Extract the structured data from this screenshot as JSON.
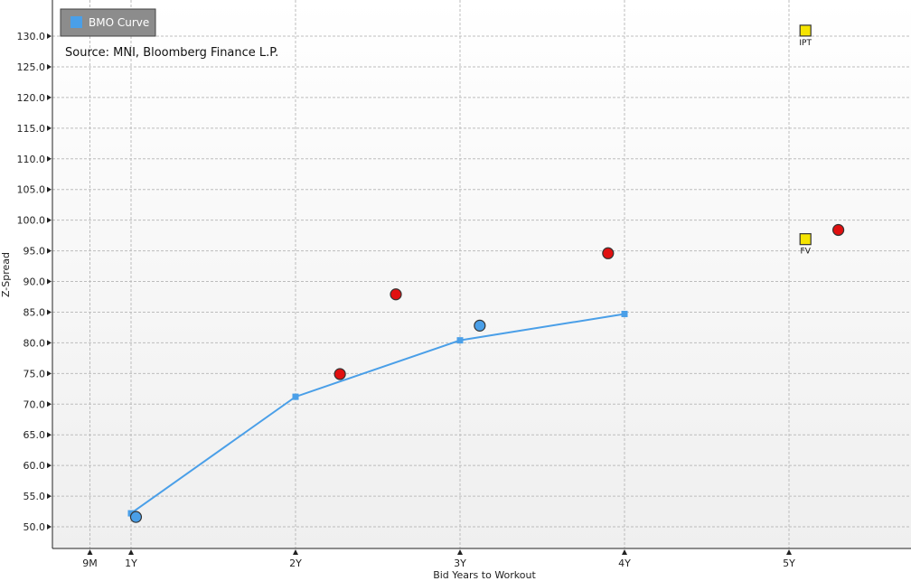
{
  "chart_data": {
    "type": "scatter",
    "source": "Source: MNI, Bloomberg Finance L.P.",
    "xlabel": "Bid Years to Workout",
    "ylabel": "Z-Spread",
    "xlim": [
      0.5,
      5.75
    ],
    "ylim": [
      48.0,
      135.0
    ],
    "x_ticks": [
      {
        "value": 0.75,
        "label": "9M"
      },
      {
        "value": 1.0,
        "label": "1Y"
      },
      {
        "value": 2.0,
        "label": "2Y"
      },
      {
        "value": 3.0,
        "label": "3Y"
      },
      {
        "value": 4.0,
        "label": "4Y"
      },
      {
        "value": 5.0,
        "label": "5Y"
      }
    ],
    "y_ticks": [
      50.0,
      55.0,
      60.0,
      65.0,
      70.0,
      75.0,
      80.0,
      85.0,
      90.0,
      95.0,
      100.0,
      105.0,
      110.0,
      115.0,
      120.0,
      125.0,
      130.0
    ],
    "y_tick_labels": [
      "50.0",
      "55.0",
      "60.0",
      "65.0",
      "70.0",
      "75.0",
      "80.0",
      "85.0",
      "90.0",
      "95.0",
      "100.0",
      "105.0",
      "110.0",
      "115.0",
      "120.0",
      "125.0",
      "130.0"
    ],
    "grid": true,
    "legend_position": "top-left",
    "legend": [
      {
        "name": "BMO Curve",
        "color": "#4a9fe8"
      }
    ],
    "curve": {
      "name": "BMO Curve",
      "color": "#4a9fe8",
      "points": [
        {
          "x": 1.0,
          "y": 52.2
        },
        {
          "x": 2.0,
          "y": 71.2
        },
        {
          "x": 3.0,
          "y": 80.4
        },
        {
          "x": 4.0,
          "y": 84.7
        }
      ]
    },
    "blue_bonds": {
      "color": "#4a9fe8",
      "points": [
        {
          "x": 1.03,
          "y": 51.6
        },
        {
          "x": 3.12,
          "y": 82.8
        }
      ]
    },
    "red_bonds": {
      "color": "#e01010",
      "points": [
        {
          "x": 2.27,
          "y": 74.9
        },
        {
          "x": 2.61,
          "y": 87.9
        },
        {
          "x": 3.9,
          "y": 94.6
        },
        {
          "x": 5.3,
          "y": 98.4
        }
      ]
    },
    "new_issue": {
      "color": "#f5e400",
      "points": [
        {
          "x": 5.1,
          "y": 130.9,
          "label": "IPT"
        },
        {
          "x": 5.1,
          "y": 96.9,
          "label": "FV"
        }
      ]
    }
  }
}
